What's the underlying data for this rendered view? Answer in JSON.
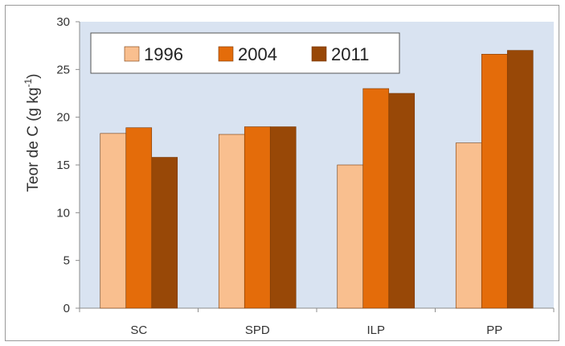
{
  "chart_data": {
    "type": "bar",
    "categories": [
      "SC",
      "SPD",
      "ILP",
      "PP"
    ],
    "series": [
      {
        "name": "1996",
        "values": [
          18.3,
          18.2,
          15.0,
          17.3
        ]
      },
      {
        "name": "2004",
        "values": [
          18.9,
          19.0,
          23.0,
          26.6
        ]
      },
      {
        "name": "2011",
        "values": [
          15.8,
          19.0,
          22.5,
          27.0
        ]
      }
    ],
    "title": "",
    "xlabel": "",
    "ylabel": "Teor de C (g kg",
    "ylabel_superscript": "-1",
    "ylabel_suffix": ")",
    "ylim": [
      0,
      30
    ],
    "yticks": [
      0,
      5,
      10,
      15,
      20,
      25,
      30
    ],
    "grid": false,
    "legend_placement": "top-left",
    "colors": {
      "1996": "#f9bf8f",
      "2004": "#e46c0a",
      "2011": "#984807",
      "plot_background": "#d9e3f1"
    }
  }
}
